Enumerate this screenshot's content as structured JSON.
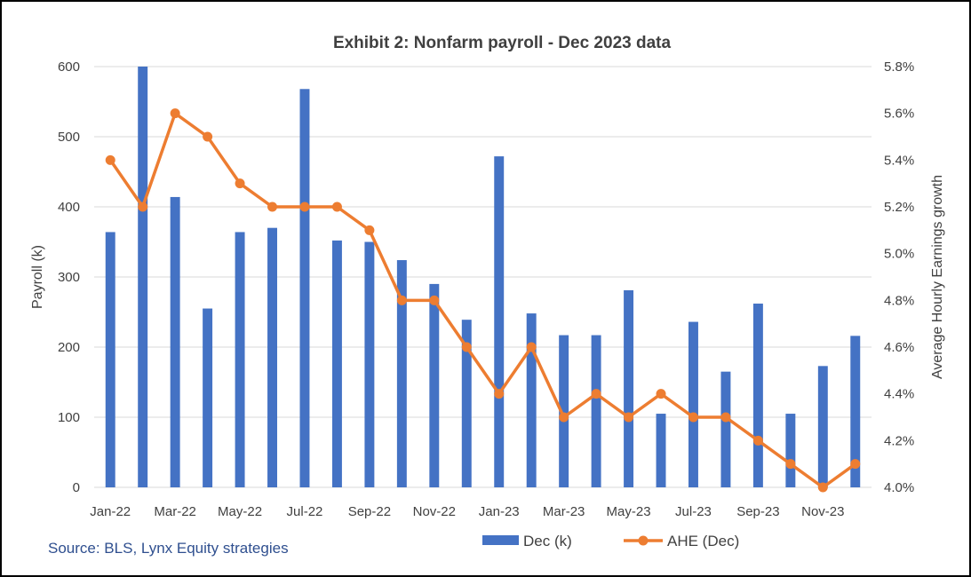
{
  "source_note": "Source: BLS, Lynx Equity strategies",
  "colors": {
    "bars": "#4472C4",
    "line": "#ED7D31",
    "grid": "#d9d9d9",
    "text": "#404040"
  },
  "chart_data": {
    "type": "bar+line",
    "title": "Exhibit 2: Nonfarm payroll - Dec 2023 data",
    "ylabel": "Payroll (k)",
    "y2label": "Average Hourly Earnings growth",
    "ylim": [
      0,
      600
    ],
    "y2lim": [
      4.0,
      5.8
    ],
    "yticks": [
      "0",
      "100",
      "200",
      "300",
      "400",
      "500",
      "600"
    ],
    "y2ticks": [
      "4.0%",
      "4.2%",
      "4.4%",
      "4.6%",
      "4.8%",
      "5.0%",
      "5.2%",
      "5.4%",
      "5.6%",
      "5.8%"
    ],
    "categories": [
      "Jan-22",
      "Feb-22",
      "Mar-22",
      "Apr-22",
      "May-22",
      "Jun-22",
      "Jul-22",
      "Aug-22",
      "Sep-22",
      "Oct-22",
      "Nov-22",
      "Dec-22",
      "Jan-23",
      "Feb-23",
      "Mar-23",
      "Apr-23",
      "May-23",
      "Jun-23",
      "Jul-23",
      "Aug-23",
      "Sep-23",
      "Oct-23",
      "Nov-23",
      "Dec-23"
    ],
    "xticks_shown": [
      "Jan-22",
      "Mar-22",
      "May-22",
      "Jul-22",
      "Sep-22",
      "Nov-22",
      "Jan-23",
      "Mar-23",
      "May-23",
      "Jul-23",
      "Sep-23",
      "Nov-23"
    ],
    "series": [
      {
        "name": "Dec (k)",
        "type": "bar",
        "axis": "left",
        "values": [
          364,
          600,
          414,
          255,
          364,
          370,
          568,
          352,
          350,
          324,
          290,
          239,
          472,
          248,
          217,
          217,
          281,
          105,
          236,
          165,
          262,
          105,
          173,
          216
        ]
      },
      {
        "name": "AHE (Dec)",
        "type": "line",
        "axis": "right",
        "values": [
          5.4,
          5.2,
          5.6,
          5.5,
          5.3,
          5.2,
          5.2,
          5.2,
          5.1,
          4.8,
          4.8,
          4.6,
          4.4,
          4.6,
          4.3,
          4.4,
          4.3,
          4.4,
          4.3,
          4.3,
          4.2,
          4.1,
          4.0,
          4.1
        ]
      }
    ],
    "legend": [
      "Dec (k)",
      "AHE (Dec)"
    ],
    "legend_position": "bottom",
    "grid": true
  }
}
